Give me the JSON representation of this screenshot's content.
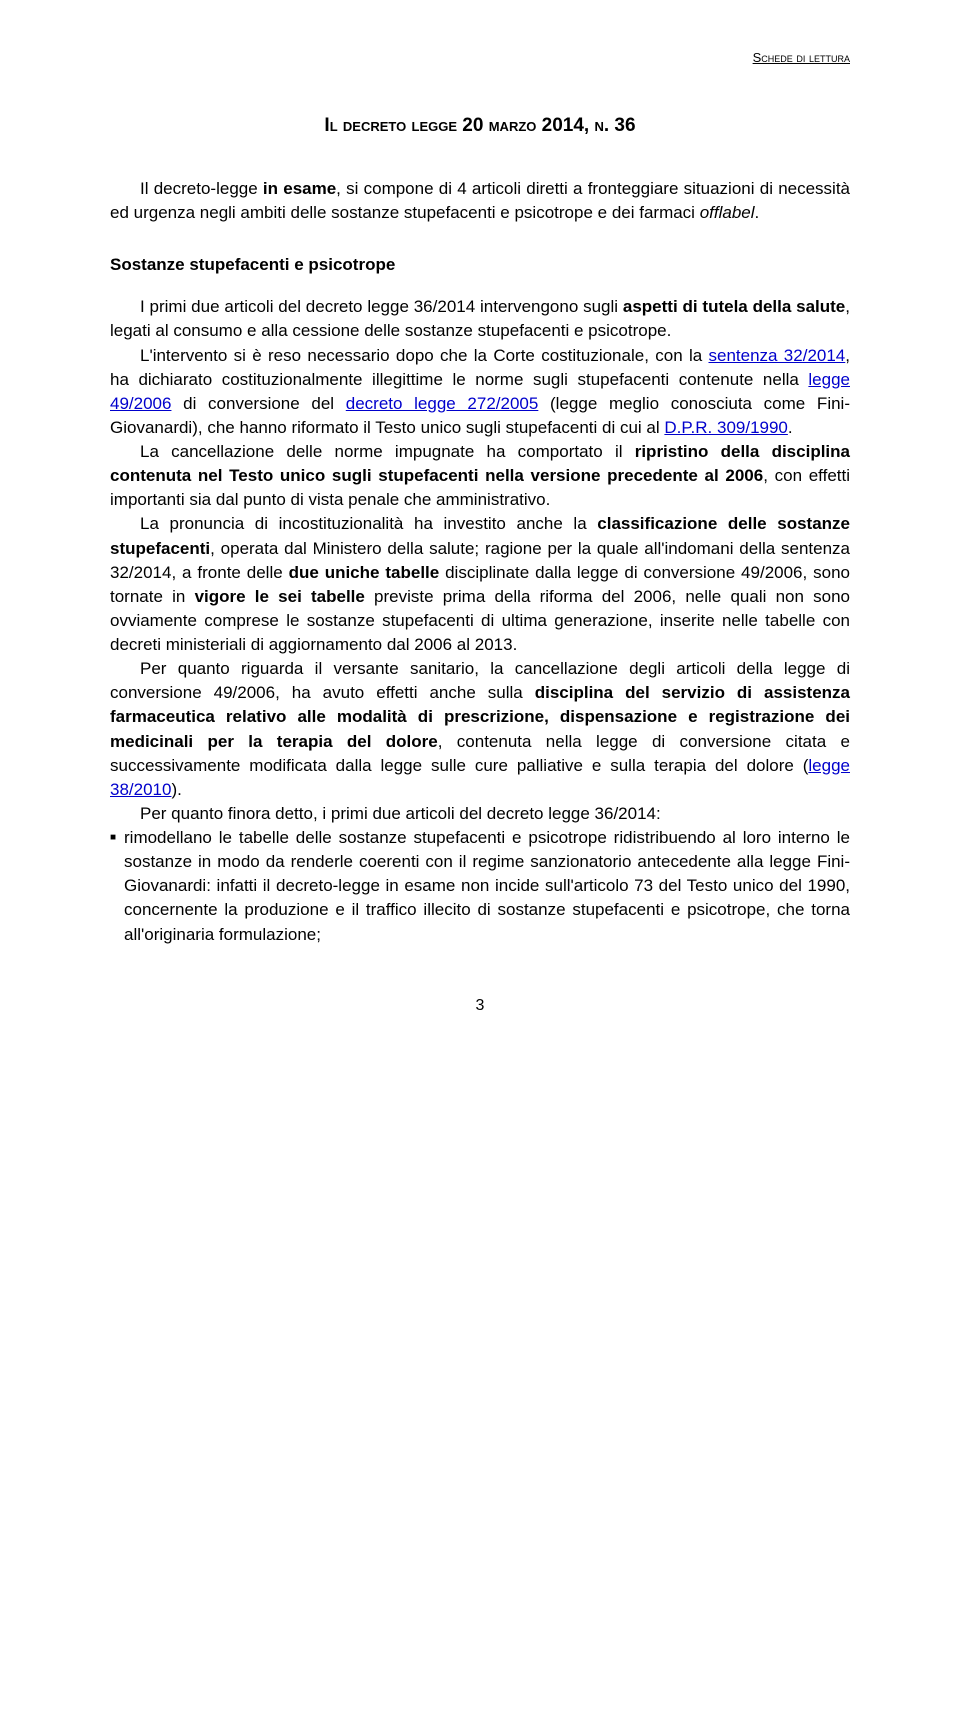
{
  "header": {
    "text": "Schede di lettura"
  },
  "title": "Il decreto legge 20 marzo 2014, n. 36",
  "intro": {
    "pre": "Il decreto-legge ",
    "bold1": "in esame",
    "mid1": ", si compone di 4 articoli diretti a fronteggiare situazioni di necessità ed urgenza negli ambiti delle sostanze stupefacenti e psicotrope e dei farmaci ",
    "italic1": "offlabel",
    "post": "."
  },
  "section": {
    "heading": "Sostanze stupefacenti e psicotrope"
  },
  "p1": {
    "pre": "I primi due articoli del decreto legge 36/2014 intervengono sugli ",
    "b1": "aspetti di tutela della salute",
    "mid": ", legati al consumo e alla cessione delle sostanze stupefacenti e psicotrope."
  },
  "p2": {
    "pre": "L'intervento si è reso necessario dopo che la Corte costituzionale, con la ",
    "link1": "sentenza 32/2014",
    "mid1": ", ha dichiarato costituzionalmente illegittime le norme sugli stupefacenti contenute nella ",
    "link2": "legge 49/2006",
    "mid2": " di conversione del ",
    "link3": "decreto legge 272/2005",
    "mid3": " (legge meglio conosciuta come Fini-Giovanardi), che hanno riformato il Testo unico sugli stupefacenti di cui al ",
    "link4": "D.P.R. 309/1990",
    "post": "."
  },
  "p3": {
    "pre": "La cancellazione delle norme impugnate ha comportato il ",
    "b1": "ripristino della disciplina contenuta nel Testo unico sugli stupefacenti nella versione precedente al 2006",
    "post": ", con effetti importanti sia dal punto di vista penale che amministrativo."
  },
  "p4": {
    "pre": "La pronuncia di incostituzionalità ha investito anche la ",
    "b1": "classificazione delle sostanze stupefacenti",
    "mid1": ", operata dal Ministero della salute; ragione per la quale all'indomani della sentenza 32/2014, a fronte delle ",
    "b2": "due uniche tabelle",
    "mid2": " disciplinate dalla legge di conversione 49/2006, sono tornate in ",
    "b3": "vigore le sei tabelle",
    "post": " previste prima della riforma del 2006, nelle quali non sono ovviamente comprese le sostanze stupefacenti di ultima generazione, inserite nelle tabelle con decreti ministeriali di aggiornamento dal 2006 al 2013."
  },
  "p5": {
    "pre": "Per quanto riguarda il versante sanitario, la cancellazione degli articoli della legge di conversione 49/2006, ha avuto effetti anche sulla ",
    "b1": "disciplina del servizio di assistenza farmaceutica relativo alle modalità di prescrizione, dispensazione e registrazione dei medicinali per la terapia del dolore",
    "mid": ", contenuta nella legge di conversione citata e successivamente modificata dalla legge sulle cure palliative e sulla terapia del dolore (",
    "link1": "legge 38/2010",
    "post": ")."
  },
  "p6": {
    "text": "Per quanto finora detto, i primi due articoli del decreto legge 36/2014:"
  },
  "bullet1": {
    "text": "rimodellano le tabelle delle sostanze stupefacenti e psicotrope ridistribuendo al loro interno le sostanze in modo da renderle coerenti con il regime sanzionatorio antecedente alla legge Fini-Giovanardi: infatti il decreto-legge in esame non incide sull'articolo 73 del Testo unico del 1990, concernente la produzione e il traffico illecito di sostanze stupefacenti e psicotrope, che torna all'originaria formulazione;"
  },
  "pageNumber": "3",
  "colors": {
    "text": "#000000",
    "link": "#0000cc",
    "background": "#ffffff"
  },
  "typography": {
    "baseFontSize": 17,
    "lineHeight": 1.42,
    "titleFontSize": 19,
    "headerFontSize": 13,
    "fontFamily": "Arial"
  }
}
